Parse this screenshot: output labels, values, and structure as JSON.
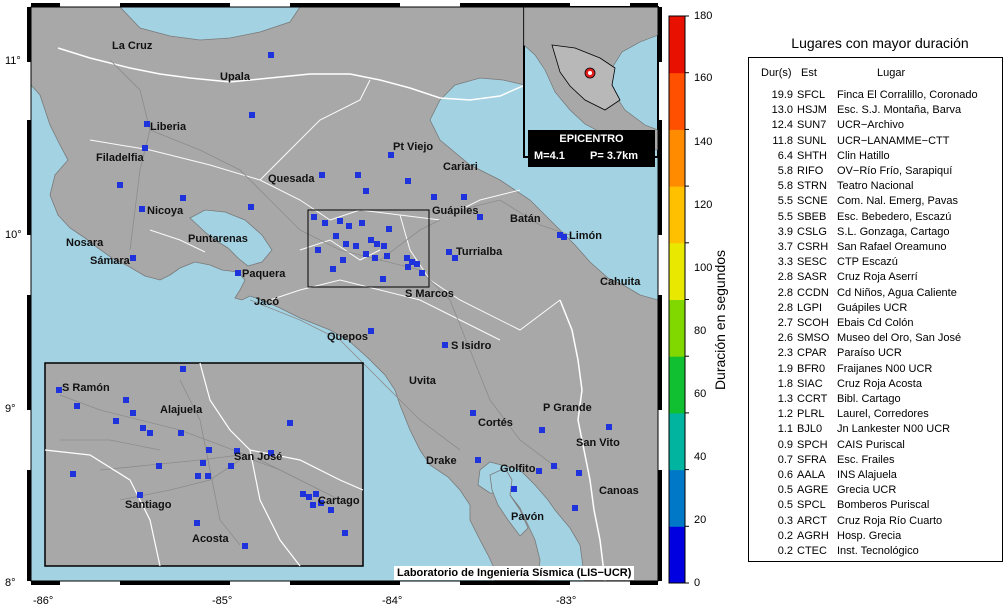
{
  "map": {
    "credit": "Laboratorio de Ingeniería Sísmica (LIS−UCR)",
    "colors": {
      "sea": "#a3d2e3",
      "land": "#a8a8a8",
      "station": "#1f33dd",
      "frame": "#000000",
      "epicenter": "#e02020"
    },
    "x_ticks": [
      "-86°",
      "-85°",
      "-84°",
      "-83°"
    ],
    "y_ticks": [
      "11°",
      "10°",
      "9°",
      "8°"
    ],
    "cities": [
      "La Cruz",
      "Upala",
      "Liberia",
      "Filadelfia",
      "Pt Viejo",
      "Cariari",
      "Quesada",
      "Guápiles",
      "Nicoya",
      "Batán",
      "Limón",
      "Nosara",
      "Puntarenas",
      "Turrialba",
      "Sámara",
      "Paquera",
      "Cahuita",
      "Jacó",
      "S Marcos",
      "Quepos",
      "S Isidro",
      "Uvita",
      "P Grande",
      "Cortés",
      "San Vito",
      "Drake",
      "Golfito",
      "Canoas",
      "Pavón"
    ],
    "inset_cities": [
      "S Ramón",
      "Alajuela",
      "San José",
      "Santiago",
      "Cartago",
      "Acosta"
    ],
    "epicenter": {
      "title": "EPICENTRO",
      "magnitude": "M=4.1",
      "depth": "P=  3.7km"
    }
  },
  "colorbar": {
    "title": "Duración en segundos",
    "ticks": [
      "180",
      "160",
      "140",
      "120",
      "100",
      "80",
      "60",
      "40",
      "20",
      "0"
    ],
    "colors": [
      "#0000e0",
      "#0078c8",
      "#00b4a0",
      "#10c030",
      "#80d800",
      "#e8e800",
      "#ffc000",
      "#ff8c00",
      "#ff5000",
      "#e81000"
    ]
  },
  "table": {
    "title": "Lugares con mayor duración",
    "headers": {
      "dur": "Dur(s)",
      "est": "Est",
      "lugar": "Lugar"
    },
    "rows": [
      [
        "19.9",
        "SFCL",
        "Finca El Corralillo, Coronado"
      ],
      [
        "13.0",
        "HSJM",
        "Esc. S.J. Montaña, Barva"
      ],
      [
        "12.4",
        "SUN7",
        "UCR−Archivo"
      ],
      [
        "11.8",
        "SUNL",
        "UCR−LANAMME−CTT"
      ],
      [
        "6.4",
        "SHTH",
        "Clin Hatillo"
      ],
      [
        "5.8",
        "RIFO",
        "OV−Río Frío, Sarapiquí"
      ],
      [
        "5.8",
        "STRN",
        "Teatro Nacional"
      ],
      [
        "5.5",
        "SCNE",
        "Com. Nal. Emerg, Pavas"
      ],
      [
        "5.5",
        "SBEB",
        "Esc. Bebedero, Escazú"
      ],
      [
        "3.9",
        "CSLG",
        "S.L. Gonzaga, Cartago"
      ],
      [
        "3.7",
        "CSRH",
        "San Rafael Oreamuno"
      ],
      [
        "3.3",
        "SESC",
        "CTP Escazú"
      ],
      [
        "2.8",
        "SASR",
        "Cruz Roja Aserrí"
      ],
      [
        "2.8",
        "CCDN",
        "Cd Niños, Agua Caliente"
      ],
      [
        "2.8",
        "LGPI",
        "Guápiles UCR"
      ],
      [
        "2.7",
        "SCOH",
        "Ebais Cd Colón"
      ],
      [
        "2.6",
        "SMSO",
        "Museo del Oro, San José"
      ],
      [
        "2.3",
        "CPAR",
        "Paraíso UCR"
      ],
      [
        "1.9",
        "BFR0",
        "Fraijanes N00 UCR"
      ],
      [
        "1.8",
        "SIAC",
        "Cruz Roja Acosta"
      ],
      [
        "1.3",
        "CCRT",
        "Bibl. Cartago"
      ],
      [
        "1.2",
        "PLRL",
        "Laurel, Corredores"
      ],
      [
        "1.1",
        "BJL0",
        "Jn Lankester N00 UCR"
      ],
      [
        "0.9",
        "SPCH",
        "CAIS Puriscal"
      ],
      [
        "0.7",
        "SFRA",
        "Esc. Frailes"
      ],
      [
        "0.6",
        "AALA",
        "INS Alajuela"
      ],
      [
        "0.5",
        "AGRE",
        "Grecia UCR"
      ],
      [
        "0.5",
        "SPCL",
        "Bomberos Puriscal"
      ],
      [
        "0.3",
        "ARCT",
        "Cruz Roja Río Cuarto"
      ],
      [
        "0.2",
        "AGRH",
        "Hosp. Grecia"
      ],
      [
        "0.2",
        "CTEC",
        "Inst. Tecnológico"
      ]
    ]
  }
}
